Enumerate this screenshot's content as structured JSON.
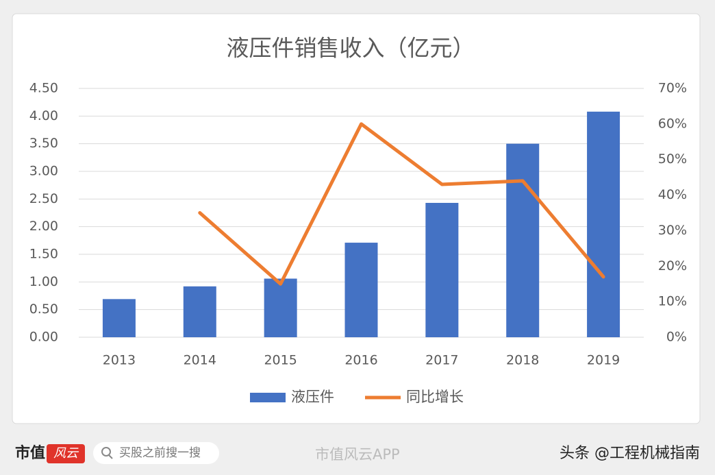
{
  "chart_data": {
    "type": "bar-line",
    "title": "液压件销售收入（亿元）",
    "categories": [
      "2013",
      "2014",
      "2015",
      "2016",
      "2017",
      "2018",
      "2019"
    ],
    "series": [
      {
        "name": "液压件",
        "type": "bar",
        "color": "#4472c4",
        "values": [
          0.69,
          0.92,
          1.06,
          1.71,
          2.43,
          3.5,
          4.08
        ]
      },
      {
        "name": "同比增长",
        "type": "line",
        "axis": "y2",
        "color": "#ed7d31",
        "values": [
          null,
          35,
          15,
          60,
          43,
          44,
          17
        ]
      }
    ],
    "ylim": [
      0,
      4.5
    ],
    "yticks": [
      {
        "value": 0,
        "label": "0.00"
      },
      {
        "value": 0.5,
        "label": "0.50"
      },
      {
        "value": 1,
        "label": "1.00"
      },
      {
        "value": 1.5,
        "label": "1.50"
      },
      {
        "value": 2,
        "label": "2.00"
      },
      {
        "value": 2.5,
        "label": "2.50"
      },
      {
        "value": 3,
        "label": "3.00"
      },
      {
        "value": 3.5,
        "label": "3.50"
      },
      {
        "value": 4,
        "label": "4.00"
      },
      {
        "value": 4.5,
        "label": "4.50"
      }
    ],
    "y2lim": [
      0,
      70
    ],
    "y2ticks": [
      {
        "value": 0,
        "label": "0%"
      },
      {
        "value": 10,
        "label": "10%"
      },
      {
        "value": 20,
        "label": "20%"
      },
      {
        "value": 30,
        "label": "30%"
      },
      {
        "value": 40,
        "label": "40%"
      },
      {
        "value": 50,
        "label": "50%"
      },
      {
        "value": 60,
        "label": "60%"
      },
      {
        "value": 70,
        "label": "70%"
      }
    ],
    "grid": true,
    "legend": "bottom"
  },
  "footer": {
    "logo": "市值",
    "logo_mark": "风云",
    "search": "买股之前搜一搜",
    "app": "市值风云APP",
    "source": "头条 @工程机械指南"
  }
}
